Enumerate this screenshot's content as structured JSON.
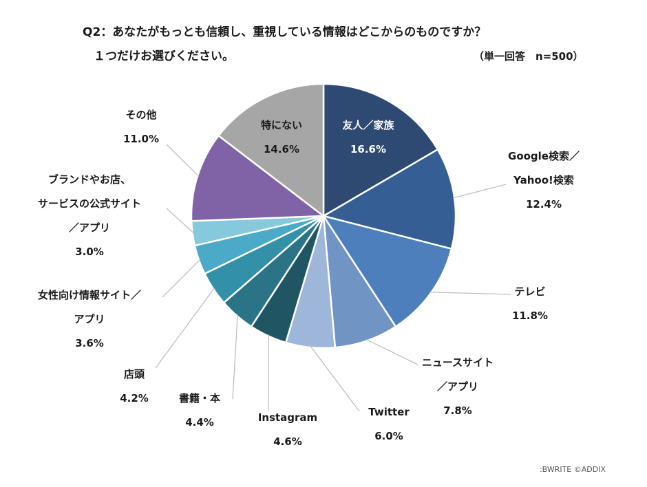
{
  "title_line1": "Q2：あなたがもっとも信頼し、重視している情報はどこからのものですか？",
  "title_line2": "１つだけお選びください。",
  "note": "（単一回答　n=500）",
  "credit": ":BWRITE ©ADDIX",
  "chart_data": {
    "type": "pie",
    "start": "12 o'clock, clockwise",
    "slices": [
      {
        "label": [
          "友人／家族"
        ],
        "value": 16.6,
        "pct": "16.6%",
        "color": "#2e4a72"
      },
      {
        "label": [
          "Google検索／",
          "Yahoo!検索"
        ],
        "value": 12.4,
        "pct": "12.4%",
        "color": "#355f94"
      },
      {
        "label": [
          "テレビ"
        ],
        "value": 11.8,
        "pct": "11.8%",
        "color": "#4e7fbd"
      },
      {
        "label": [
          "ニュースサイト",
          "／アプリ"
        ],
        "value": 7.8,
        "pct": "7.8%",
        "color": "#7094c4"
      },
      {
        "label": [
          "Twitter"
        ],
        "value": 6.0,
        "pct": "6.0%",
        "color": "#9db6d9"
      },
      {
        "label": [
          "Instagram"
        ],
        "value": 4.6,
        "pct": "4.6%",
        "color": "#205663"
      },
      {
        "label": [
          "書籍・本"
        ],
        "value": 4.4,
        "pct": "4.4%",
        "color": "#2b7386"
      },
      {
        "label": [
          "店頭"
        ],
        "value": 4.2,
        "pct": "4.2%",
        "color": "#3290a8"
      },
      {
        "label": [
          "女性向け情報サイト／",
          "アプリ"
        ],
        "value": 3.6,
        "pct": "3.6%",
        "color": "#4aaac8"
      },
      {
        "label": [
          "ブランドやお店、",
          "サービスの公式サイト",
          "／アプリ"
        ],
        "value": 3.0,
        "pct": "3.0%",
        "color": "#86c8dc"
      },
      {
        "label": [
          "その他"
        ],
        "value": 11.0,
        "pct": "11.0%",
        "color": "#8062a6"
      },
      {
        "label": [
          "特にない"
        ],
        "value": 14.6,
        "pct": "14.6%",
        "color": "#a6a6a6"
      }
    ]
  }
}
